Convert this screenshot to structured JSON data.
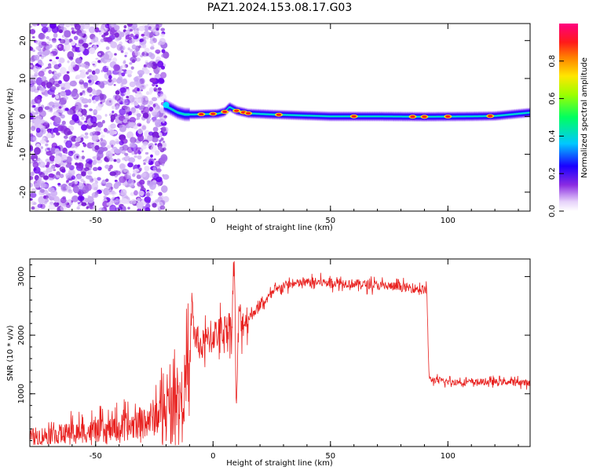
{
  "figure_title": "PAZ1.2024.153.08.17.G03",
  "chart_data": [
    {
      "type": "heatmap",
      "title": "",
      "xlabel": "Height of straight line (km)",
      "ylabel": "Frequency (Hz)",
      "xlim": [
        -78,
        135
      ],
      "ylim": [
        -25,
        24.5
      ],
      "xticks": [
        -50,
        0,
        50,
        100
      ],
      "yticks": [
        -20,
        -10,
        0,
        10,
        20
      ],
      "grid": false,
      "noise_region_x": [
        -78,
        -20
      ],
      "signal_line": {
        "x": [
          -21,
          -18,
          -15,
          -12,
          -8,
          -3,
          2,
          5,
          7,
          10,
          15,
          25,
          35,
          50,
          70,
          90,
          110,
          120,
          135
        ],
        "y": [
          3.0,
          2.0,
          1.0,
          0.5,
          0.5,
          0.6,
          0.7,
          1.2,
          2.5,
          1.5,
          0.8,
          0.5,
          0.3,
          0.0,
          0.0,
          -0.1,
          0.0,
          0.1,
          1.0
        ],
        "peak_x": [
          -5,
          0,
          5,
          10,
          13,
          15,
          28,
          60,
          85,
          90,
          100,
          118
        ]
      },
      "colorbar": {
        "label": "Normalized spectral amplitude",
        "ticks": [
          0.0,
          0.2,
          0.4,
          0.6,
          0.8
        ],
        "range": [
          0.0,
          1.0
        ]
      }
    },
    {
      "type": "line",
      "title": "",
      "xlabel": "Height of straight line (km)",
      "ylabel": "SNR (10 * v/v)",
      "xlim": [
        -78,
        135
      ],
      "ylim": [
        100,
        3300
      ],
      "xticks": [
        -50,
        0,
        50,
        100
      ],
      "yticks": [
        1000,
        2000,
        3000
      ],
      "grid": false,
      "color": "#e8201e",
      "series": [
        {
          "x": [
            -78,
            -60,
            -45,
            -35,
            -25,
            -20,
            -15,
            -12,
            -10,
            -9,
            -8,
            -5,
            0,
            5,
            8,
            9,
            10,
            11,
            12,
            15,
            20,
            25,
            30,
            40,
            50,
            60,
            70,
            80,
            90,
            91,
            92,
            100,
            110,
            120,
            130,
            135
          ],
          "y": [
            270,
            330,
            380,
            450,
            600,
            750,
            900,
            1100,
            1300,
            2600,
            2000,
            1800,
            2000,
            2100,
            2200,
            3300,
            600,
            2500,
            2200,
            2300,
            2500,
            2700,
            2850,
            2900,
            2900,
            2880,
            2850,
            2820,
            2780,
            2750,
            1250,
            1200,
            1200,
            1200,
            1200,
            1180
          ]
        }
      ]
    }
  ],
  "colors": {
    "signal_trace": "#e8201e",
    "noise_purple": "#8a2be2"
  }
}
